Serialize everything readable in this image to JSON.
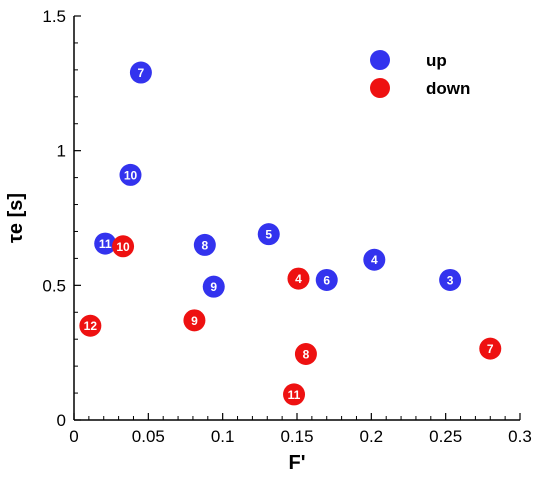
{
  "chart_data": {
    "type": "scatter",
    "xlabel": "F'",
    "ylabel": "τe [s]",
    "xlim": [
      0,
      0.3
    ],
    "ylim": [
      0,
      1.5
    ],
    "x_ticks": [
      "0",
      "0.05",
      "0.1",
      "0.15",
      "0.2",
      "0.25",
      "0.3"
    ],
    "y_ticks": [
      "0",
      "0.5",
      "1",
      "1.5"
    ],
    "grid": false,
    "legend_position": "top-right",
    "series": [
      {
        "name": "up",
        "color": "#3333ee",
        "points": [
          {
            "x": 0.045,
            "y": 1.29,
            "label": "7"
          },
          {
            "x": 0.038,
            "y": 0.91,
            "label": "10"
          },
          {
            "x": 0.021,
            "y": 0.655,
            "label": "11"
          },
          {
            "x": 0.088,
            "y": 0.65,
            "label": "8"
          },
          {
            "x": 0.131,
            "y": 0.69,
            "label": "5"
          },
          {
            "x": 0.094,
            "y": 0.495,
            "label": "9"
          },
          {
            "x": 0.17,
            "y": 0.52,
            "label": "6"
          },
          {
            "x": 0.202,
            "y": 0.595,
            "label": "4"
          },
          {
            "x": 0.253,
            "y": 0.52,
            "label": "3"
          }
        ]
      },
      {
        "name": "down",
        "color": "#ee1111",
        "points": [
          {
            "x": 0.033,
            "y": 0.645,
            "label": "10"
          },
          {
            "x": 0.011,
            "y": 0.35,
            "label": "12"
          },
          {
            "x": 0.081,
            "y": 0.37,
            "label": "9"
          },
          {
            "x": 0.151,
            "y": 0.525,
            "label": "4"
          },
          {
            "x": 0.156,
            "y": 0.245,
            "label": "8"
          },
          {
            "x": 0.148,
            "y": 0.095,
            "label": "11"
          },
          {
            "x": 0.28,
            "y": 0.265,
            "label": "7"
          }
        ]
      }
    ]
  }
}
